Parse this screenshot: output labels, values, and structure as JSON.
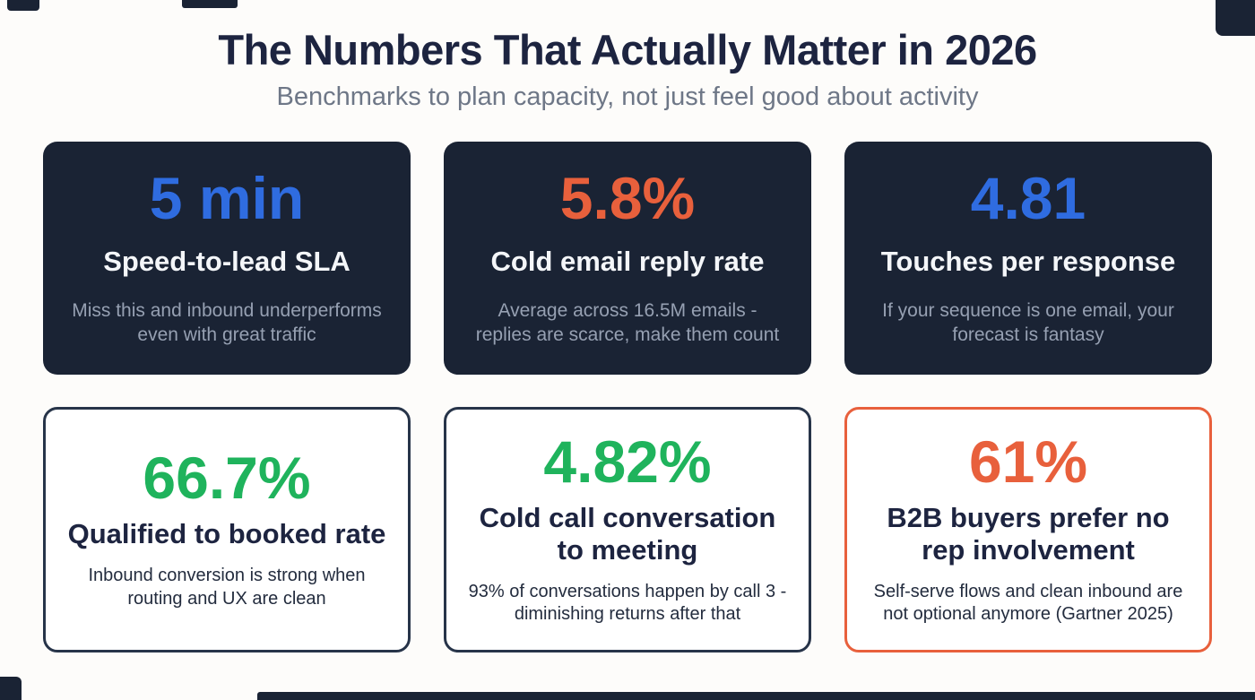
{
  "page": {
    "title": "The Numbers That Actually Matter in 2026",
    "subtitle": "Benchmarks to plan capacity, not just feel good about activity"
  },
  "colors": {
    "navy_card_bg": "#1a2334",
    "title_text": "#1d2440",
    "subtitle_text": "#6e7787",
    "accent_blue": "#2f6ce0",
    "accent_orange": "#e8603c",
    "accent_green": "#1fb35c",
    "dark_card_description_text": "#96a0b2",
    "light_card_border_navy": "#273449",
    "light_card_border_orange": "#e8603c"
  },
  "cards": [
    {
      "value": "5 min",
      "label": "Speed-to-lead SLA",
      "description": "Miss this and inbound underperforms even with great traffic"
    },
    {
      "value": "5.8%",
      "label": "Cold email reply rate",
      "description": "Average across 16.5M emails - replies are scarce, make them count"
    },
    {
      "value": "4.81",
      "label": "Touches per response",
      "description": "If your sequence is one email, your forecast is fantasy"
    },
    {
      "value": "66.7%",
      "label": "Qualified to booked rate",
      "description": "Inbound conversion is strong when routing and UX are clean"
    },
    {
      "value": "4.82%",
      "label": "Cold call conversation to meeting",
      "description": "93% of conversations happen by call 3 - diminishing returns after that"
    },
    {
      "value": "61%",
      "label": "B2B buyers prefer no rep involvement",
      "description": "Self-serve flows and clean inbound are not optional anymore (Gartner 2025)"
    }
  ]
}
